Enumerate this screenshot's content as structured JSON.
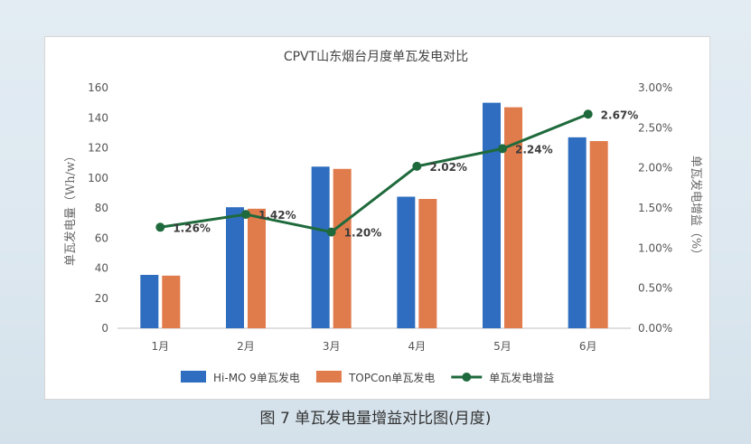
{
  "chart_data": {
    "type": "bar",
    "title": "CPVT山东烟台月度单瓦发电对比",
    "categories": [
      "1月",
      "2月",
      "3月",
      "4月",
      "5月",
      "6月"
    ],
    "series": [
      {
        "name": "Hi-MO 9单瓦发电",
        "type": "bar",
        "axis": "left",
        "color": "#2e6dbf",
        "values": [
          35.5,
          80.5,
          107.5,
          87.5,
          150.0,
          127.0
        ]
      },
      {
        "name": "TOPCon单瓦发电",
        "type": "bar",
        "axis": "left",
        "color": "#e07b4c",
        "values": [
          35.0,
          79.5,
          106.0,
          86.0,
          147.0,
          124.5
        ]
      },
      {
        "name": "单瓦发电增益",
        "type": "line",
        "axis": "right",
        "color": "#1f6a3c",
        "values": [
          1.26,
          1.42,
          1.2,
          2.02,
          2.24,
          2.67
        ],
        "labels": [
          "1.26%",
          "1.42%",
          "1.20%",
          "2.02%",
          "2.24%",
          "2.67%"
        ]
      }
    ],
    "ylabel": "单瓦发电量（Wh/w）",
    "y2label": "单瓦发电增益（%）",
    "ylim": [
      0,
      160
    ],
    "yticks": [
      "0",
      "20",
      "40",
      "60",
      "80",
      "100",
      "120",
      "140",
      "160"
    ],
    "y2lim": [
      0,
      3.0
    ],
    "y2ticks": [
      "0.00%",
      "0.50%",
      "1.00%",
      "1.50%",
      "2.00%",
      "2.50%",
      "3.00%"
    ],
    "grid": false,
    "legend": "bottom"
  },
  "caption": "图 7 单瓦发电量增益对比图(月度)"
}
